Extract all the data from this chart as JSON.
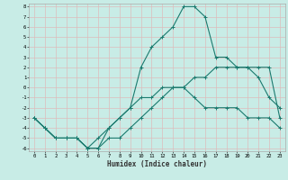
{
  "xlabel": "Humidex (Indice chaleur)",
  "bg_color": "#c8ece6",
  "grid_color": "#ddbcbc",
  "line_color": "#1a7a6e",
  "xlim": [
    0,
    23
  ],
  "ylim": [
    -6,
    8
  ],
  "xtick_vals": [
    0,
    1,
    2,
    3,
    4,
    5,
    6,
    7,
    8,
    9,
    10,
    11,
    12,
    13,
    14,
    15,
    16,
    17,
    18,
    19,
    20,
    21,
    22,
    23
  ],
  "ytick_vals": [
    -6,
    -5,
    -4,
    -3,
    -2,
    -1,
    0,
    1,
    2,
    3,
    4,
    5,
    6,
    7,
    8
  ],
  "curve_spike_x": [
    0,
    1,
    2,
    3,
    4,
    5,
    6,
    7,
    8,
    9,
    10,
    11,
    12,
    13,
    14,
    15,
    16,
    17,
    18,
    19,
    20,
    21,
    22,
    23
  ],
  "curve_spike_y": [
    -3,
    -4,
    -5,
    -5,
    -5,
    -6,
    -6,
    -4,
    -3,
    -2,
    2,
    4,
    5,
    6,
    8,
    8,
    7,
    3,
    3,
    2,
    2,
    1,
    -1,
    -2
  ],
  "curve_low_x": [
    0,
    1,
    2,
    3,
    4,
    5,
    6,
    7,
    8,
    9,
    10,
    11,
    12,
    13,
    14,
    15,
    16,
    17,
    18,
    19,
    20,
    21,
    22,
    23
  ],
  "curve_low_y": [
    -3,
    -4,
    -5,
    -5,
    -5,
    -6,
    -6,
    -5,
    -5,
    -4,
    -3,
    -2,
    -1,
    0,
    0,
    -1,
    -2,
    -2,
    -2,
    -2,
    -3,
    -3,
    -3,
    -4
  ],
  "curve_mid_x": [
    0,
    1,
    2,
    3,
    4,
    5,
    6,
    7,
    8,
    9,
    10,
    11,
    12,
    13,
    14,
    15,
    16,
    17,
    18,
    19,
    20,
    21,
    22,
    23
  ],
  "curve_mid_y": [
    -3,
    -4,
    -5,
    -5,
    -5,
    -6,
    -5,
    -4,
    -3,
    -2,
    -1,
    -1,
    0,
    0,
    0,
    1,
    1,
    2,
    2,
    2,
    2,
    2,
    2,
    -3
  ]
}
